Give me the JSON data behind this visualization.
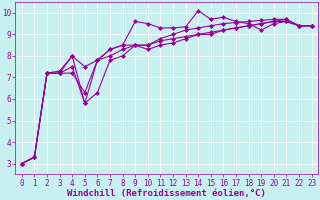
{
  "bg_color": "#c8f0f0",
  "line_color": "#990099",
  "grid_color": "#ffffff",
  "xlabel": "Windchill (Refroidissement éolien,°C)",
  "xlabel_color": "#990099",
  "xlim": [
    -0.5,
    23.5
  ],
  "ylim": [
    2.5,
    10.5
  ],
  "xticks": [
    0,
    1,
    2,
    3,
    4,
    5,
    6,
    7,
    8,
    9,
    10,
    11,
    12,
    13,
    14,
    15,
    16,
    17,
    18,
    19,
    20,
    21,
    22,
    23
  ],
  "yticks": [
    3,
    4,
    5,
    6,
    7,
    8,
    9,
    10
  ],
  "series": [
    [
      3.0,
      3.3,
      7.2,
      7.2,
      8.0,
      5.8,
      7.8,
      8.3,
      8.5,
      9.6,
      9.5,
      9.3,
      9.3,
      9.35,
      10.1,
      9.7,
      9.8,
      9.6,
      9.5,
      9.2,
      9.5,
      9.6,
      9.4,
      9.4
    ],
    [
      3.0,
      3.3,
      7.2,
      7.2,
      7.2,
      6.3,
      7.8,
      8.0,
      8.3,
      8.5,
      8.3,
      8.5,
      8.6,
      8.8,
      9.0,
      9.0,
      9.2,
      9.3,
      9.4,
      9.5,
      9.6,
      9.6,
      9.4,
      9.4
    ],
    [
      3.0,
      3.3,
      7.2,
      7.3,
      8.0,
      7.5,
      7.8,
      8.3,
      8.5,
      8.5,
      8.5,
      8.7,
      8.8,
      8.9,
      9.0,
      9.1,
      9.2,
      9.3,
      9.4,
      9.5,
      9.6,
      9.7,
      9.4,
      9.4
    ],
    [
      3.0,
      3.3,
      7.2,
      7.2,
      7.5,
      5.8,
      6.3,
      7.8,
      8.0,
      8.5,
      8.5,
      8.8,
      9.0,
      9.2,
      9.3,
      9.4,
      9.5,
      9.55,
      9.6,
      9.65,
      9.7,
      9.7,
      9.4,
      9.4
    ]
  ],
  "marker": "D",
  "markersize": 2.0,
  "linewidth": 0.8,
  "tick_labelsize": 5.5,
  "xlabel_fontsize": 6.5,
  "xlabel_fontweight": "bold"
}
